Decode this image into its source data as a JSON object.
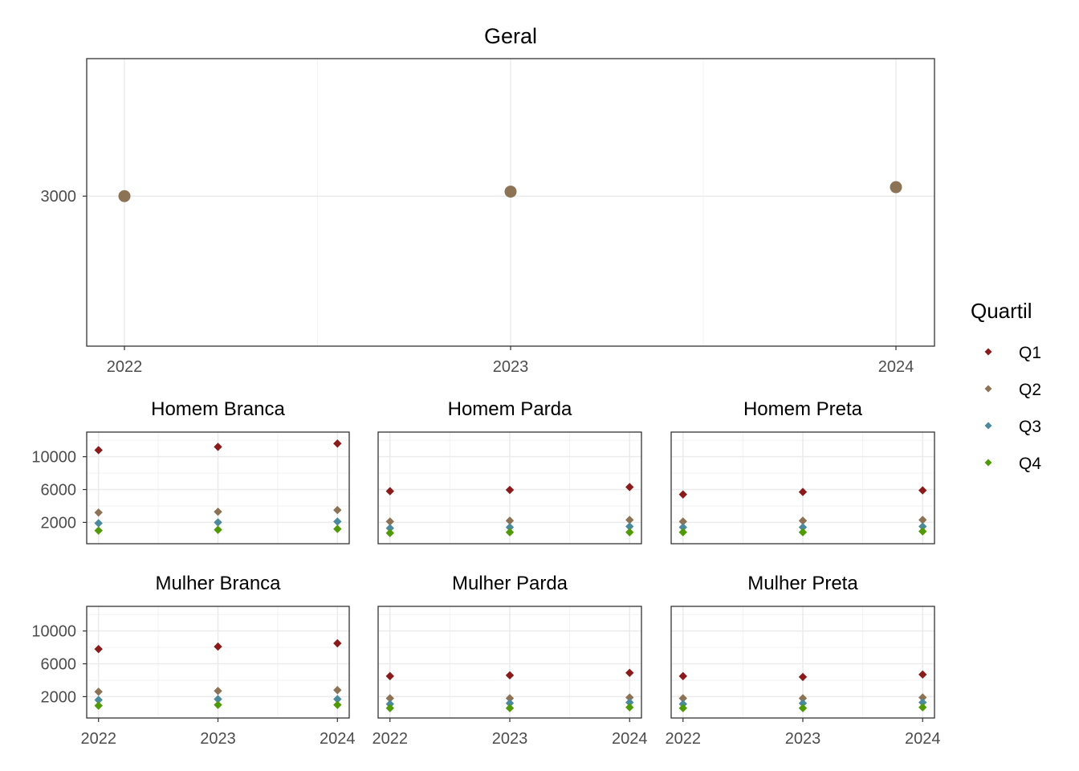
{
  "chart_data": [
    {
      "type": "scatter",
      "title": "Geral",
      "x": [
        "2022",
        "2023",
        "2024"
      ],
      "series": [
        {
          "values": [
            3000,
            3018,
            3036
          ],
          "color": "#8c7355"
        }
      ],
      "ylim": [
        2400,
        3550
      ],
      "y_ticks": [
        3000
      ],
      "grid": true
    },
    {
      "type": "scatter",
      "x": [
        "2022",
        "2023",
        "2024"
      ],
      "shared_y_ticks": [
        2000,
        6000,
        10000
      ],
      "ylim": [
        -600,
        13000
      ],
      "legend": {
        "title": "Quartil",
        "position": "right",
        "entries": [
          {
            "label": "Q1",
            "color": "#8b1a1a"
          },
          {
            "label": "Q2",
            "color": "#8c7355"
          },
          {
            "label": "Q3",
            "color": "#4b8a9c"
          },
          {
            "label": "Q4",
            "color": "#4f9a06"
          }
        ]
      },
      "panels": [
        {
          "title": "Homem Branca",
          "series": [
            {
              "name": "Q1",
              "values": [
                10800,
                11200,
                11600
              ]
            },
            {
              "name": "Q2",
              "values": [
                3200,
                3300,
                3500
              ]
            },
            {
              "name": "Q3",
              "values": [
                1900,
                2000,
                2100
              ]
            },
            {
              "name": "Q4",
              "values": [
                1000,
                1100,
                1200
              ]
            }
          ]
        },
        {
          "title": "Homem Parda",
          "series": [
            {
              "name": "Q1",
              "values": [
                5800,
                5950,
                6300
              ]
            },
            {
              "name": "Q2",
              "values": [
                2100,
                2200,
                2300
              ]
            },
            {
              "name": "Q3",
              "values": [
                1300,
                1400,
                1500
              ]
            },
            {
              "name": "Q4",
              "values": [
                700,
                800,
                800
              ]
            }
          ]
        },
        {
          "title": "Homem Preta",
          "series": [
            {
              "name": "Q1",
              "values": [
                5400,
                5700,
                5900
              ]
            },
            {
              "name": "Q2",
              "values": [
                2100,
                2200,
                2300
              ]
            },
            {
              "name": "Q3",
              "values": [
                1400,
                1400,
                1500
              ]
            },
            {
              "name": "Q4",
              "values": [
                800,
                800,
                900
              ]
            }
          ]
        },
        {
          "title": "Mulher Branca",
          "series": [
            {
              "name": "Q1",
              "values": [
                7800,
                8100,
                8500
              ]
            },
            {
              "name": "Q2",
              "values": [
                2600,
                2700,
                2800
              ]
            },
            {
              "name": "Q3",
              "values": [
                1600,
                1700,
                1700
              ]
            },
            {
              "name": "Q4",
              "values": [
                900,
                1000,
                1000
              ]
            }
          ]
        },
        {
          "title": "Mulher Parda",
          "series": [
            {
              "name": "Q1",
              "values": [
                4500,
                4600,
                4900
              ]
            },
            {
              "name": "Q2",
              "values": [
                1800,
                1800,
                1900
              ]
            },
            {
              "name": "Q3",
              "values": [
                1100,
                1200,
                1300
              ]
            },
            {
              "name": "Q4",
              "values": [
                600,
                600,
                700
              ]
            }
          ]
        },
        {
          "title": "Mulher Preta",
          "series": [
            {
              "name": "Q1",
              "values": [
                4500,
                4400,
                4700
              ]
            },
            {
              "name": "Q2",
              "values": [
                1800,
                1800,
                1900
              ]
            },
            {
              "name": "Q3",
              "values": [
                1100,
                1200,
                1300
              ]
            },
            {
              "name": "Q4",
              "values": [
                600,
                600,
                700
              ]
            }
          ]
        }
      ]
    }
  ]
}
